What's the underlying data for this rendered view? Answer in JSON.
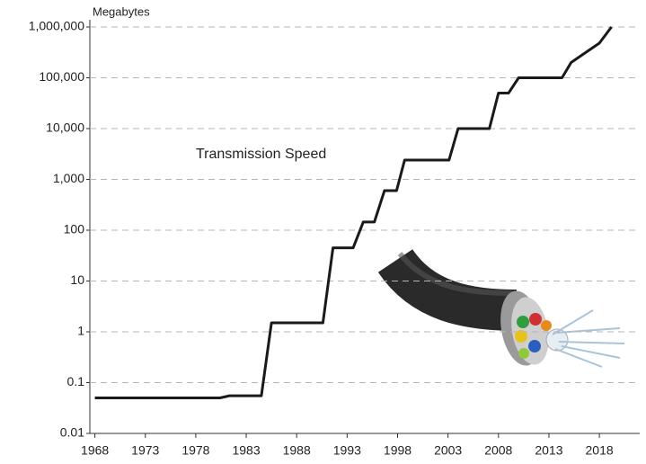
{
  "chart_data": {
    "type": "line",
    "title": "Transmission Speed",
    "y_label": "Megabytes",
    "x": [
      1968,
      1980.4,
      1981.3,
      1984.5,
      1985.5,
      1990.6,
      1991.6,
      1993.6,
      1994.6,
      1995.7,
      1996.7,
      1997.9,
      1998.7,
      2003.1,
      2004,
      2007.1,
      2008,
      2009,
      2010,
      2014.3,
      2015.2,
      2016.5,
      2018,
      2019.2
    ],
    "series": [
      {
        "name": "Transmission Speed",
        "color": "#1a1a1a",
        "values": [
          0.05,
          0.05,
          0.055,
          0.055,
          1.5,
          1.5,
          45,
          45,
          145,
          145,
          600,
          600,
          2400,
          2400,
          10000,
          10000,
          50000,
          50000,
          100000,
          100000,
          200000,
          300000,
          480000,
          1000000
        ]
      }
    ],
    "xlim": [
      1967.5,
      2022
    ],
    "xticks": [
      1968,
      1973,
      1978,
      1983,
      1988,
      1993,
      1998,
      2003,
      2008,
      2013,
      2018
    ],
    "ylim": [
      0.01,
      1000000
    ],
    "yticks": [
      0.01,
      0.1,
      1,
      10,
      100,
      {
        "value": 1000,
        "label": "1,000"
      },
      {
        "value": 10000,
        "label": "10,000"
      },
      {
        "value": 100000,
        "label": "100,000"
      },
      {
        "value": 1000000,
        "label": "1,000,000"
      }
    ],
    "log_y": true,
    "grid": true
  }
}
